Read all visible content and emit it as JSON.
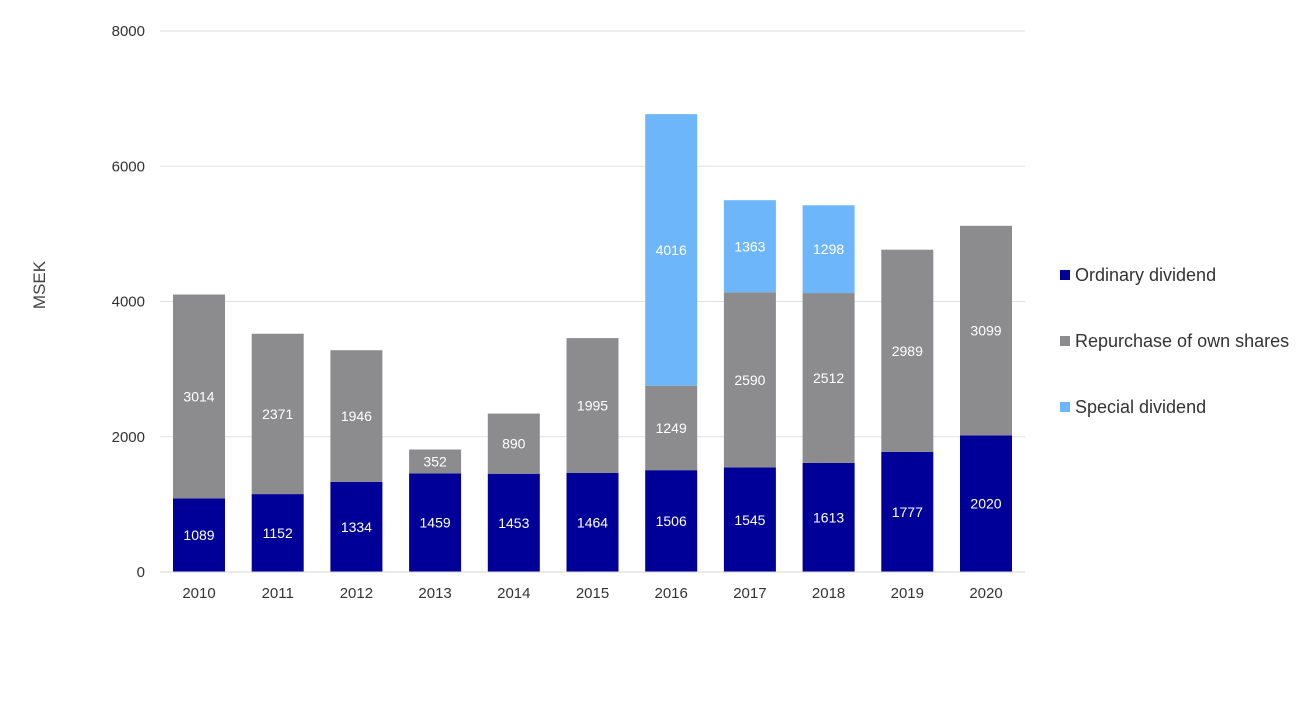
{
  "chart_data": {
    "type": "bar",
    "stacked": true,
    "title": "",
    "xlabel": "",
    "ylabel": "MSEK",
    "ylim": [
      0,
      8000
    ],
    "yticks": [
      "0",
      "2000",
      "4000",
      "6000",
      "8000"
    ],
    "grid": true,
    "legend_position": "right",
    "categories": [
      "2010",
      "2011",
      "2012",
      "2013",
      "2014",
      "2015",
      "2016",
      "2017",
      "2018",
      "2019",
      "2020"
    ],
    "series": [
      {
        "name": "Ordinary dividend",
        "color": "#000099",
        "values": [
          1089,
          1152,
          1334,
          1459,
          1453,
          1464,
          1506,
          1545,
          1613,
          1777,
          2020
        ]
      },
      {
        "name": "Repurchase of own shares",
        "color": "#8c8c8e",
        "values": [
          3014,
          2371,
          1946,
          352,
          890,
          1995,
          1249,
          2590,
          2512,
          2989,
          3099
        ]
      },
      {
        "name": "Special dividend",
        "color": "#6eb6fa",
        "values": [
          null,
          null,
          null,
          null,
          null,
          null,
          4016,
          1363,
          1298,
          null,
          null
        ]
      }
    ]
  }
}
